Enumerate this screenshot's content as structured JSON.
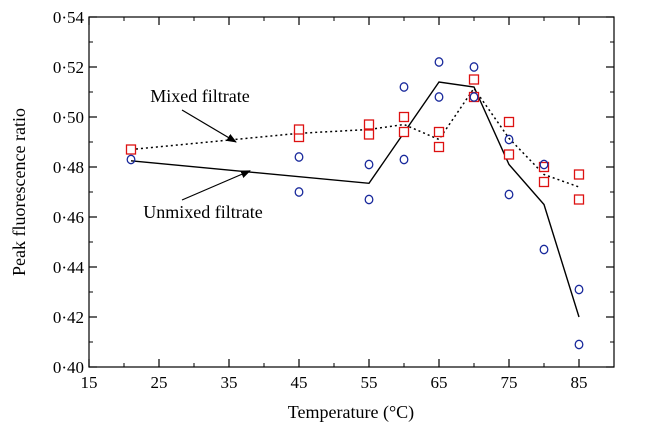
{
  "chart_data": {
    "type": "scatter",
    "xlabel": "Temperature (°C)",
    "ylabel": "Peak fluorescence ratio",
    "xlim": [
      15,
      90
    ],
    "ylim": [
      0.4,
      0.54
    ],
    "x_ticks": [
      15,
      25,
      35,
      45,
      55,
      65,
      75,
      85
    ],
    "x_tick_labels": [
      "15",
      "25",
      "35",
      "45",
      "55",
      "65",
      "75",
      "85"
    ],
    "y_ticks": [
      0.4,
      0.42,
      0.44,
      0.46,
      0.48,
      0.5,
      0.52,
      0.54
    ],
    "y_tick_labels": [
      "0·40",
      "0·42",
      "0·44",
      "0·46",
      "0·48",
      "0·50",
      "0·52",
      "0·54"
    ],
    "grid": false,
    "series": [
      {
        "marker": "square",
        "color": "#dd1111",
        "line_style": "dotted",
        "points": [
          {
            "x": 21,
            "y": 0.487
          },
          {
            "x": 45,
            "y": 0.492
          },
          {
            "x": 45,
            "y": 0.495
          },
          {
            "x": 55,
            "y": 0.493
          },
          {
            "x": 55,
            "y": 0.497
          },
          {
            "x": 60,
            "y": 0.494
          },
          {
            "x": 60,
            "y": 0.5
          },
          {
            "x": 65,
            "y": 0.488
          },
          {
            "x": 65,
            "y": 0.494
          },
          {
            "x": 70,
            "y": 0.508
          },
          {
            "x": 70,
            "y": 0.515
          },
          {
            "x": 75,
            "y": 0.485
          },
          {
            "x": 75,
            "y": 0.498
          },
          {
            "x": 80,
            "y": 0.474
          },
          {
            "x": 80,
            "y": 0.48
          },
          {
            "x": 85,
            "y": 0.467
          },
          {
            "x": 85,
            "y": 0.477
          }
        ],
        "line": {
          "x": [
            21,
            45,
            55,
            60,
            65,
            70,
            75,
            80,
            85
          ],
          "y": [
            0.487,
            0.4935,
            0.495,
            0.497,
            0.491,
            0.5115,
            0.4915,
            0.477,
            0.472
          ]
        }
      },
      {
        "marker": "circle",
        "color": "#1a2a9c",
        "line_style": "solid",
        "points": [
          {
            "x": 21,
            "y": 0.483
          },
          {
            "x": 45,
            "y": 0.47
          },
          {
            "x": 45,
            "y": 0.484
          },
          {
            "x": 55,
            "y": 0.467
          },
          {
            "x": 55,
            "y": 0.481
          },
          {
            "x": 60,
            "y": 0.483
          },
          {
            "x": 60,
            "y": 0.512
          },
          {
            "x": 65,
            "y": 0.508
          },
          {
            "x": 65,
            "y": 0.522
          },
          {
            "x": 70,
            "y": 0.508
          },
          {
            "x": 70,
            "y": 0.52
          },
          {
            "x": 75,
            "y": 0.469
          },
          {
            "x": 75,
            "y": 0.491
          },
          {
            "x": 80,
            "y": 0.447
          },
          {
            "x": 80,
            "y": 0.481
          },
          {
            "x": 85,
            "y": 0.409
          },
          {
            "x": 85,
            "y": 0.431
          }
        ],
        "line": {
          "x": [
            21,
            55,
            65,
            70,
            75,
            80,
            85
          ],
          "y": [
            0.4825,
            0.4735,
            0.514,
            0.512,
            0.481,
            0.465,
            0.42
          ]
        }
      }
    ],
    "annotations": [
      {
        "text": "Mixed filtrate",
        "points_to": {
          "x": 36,
          "y": 0.49
        }
      },
      {
        "text": "Unmixed filtrate",
        "points_to": {
          "x": 38,
          "y": 0.4785
        }
      }
    ]
  }
}
